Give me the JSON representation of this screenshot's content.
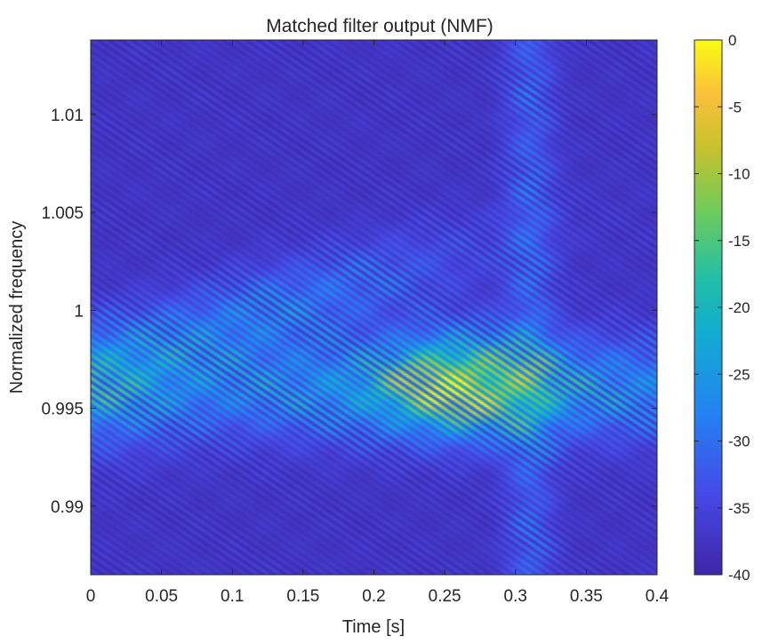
{
  "chart_data": {
    "type": "heatmap",
    "title": "Matched filter output (NMF)",
    "xlabel": "Time [s]",
    "ylabel": "Normalized frequency",
    "xlim": [
      0,
      0.4
    ],
    "ylim": [
      0.9865,
      1.0138
    ],
    "x_ticks": [
      0,
      0.05,
      0.1,
      0.15,
      0.2,
      0.25,
      0.3,
      0.35,
      0.4
    ],
    "x_tick_labels": [
      "0",
      "0.05",
      "0.1",
      "0.15",
      "0.2",
      "0.25",
      "0.3",
      "0.35",
      "0.4"
    ],
    "y_ticks": [
      0.99,
      0.995,
      1,
      1.005,
      1.01
    ],
    "y_tick_labels": [
      "0.99",
      "0.995",
      "1",
      "1.005",
      "1.01"
    ],
    "grid": false,
    "colormap": "parula",
    "colorbar": {
      "min": -40,
      "max": 0,
      "ticks": [
        0,
        -5,
        -10,
        -15,
        -20,
        -25,
        -30,
        -35,
        -40
      ],
      "tick_labels": [
        "0",
        "-5",
        "-10",
        "-15",
        "-20",
        "-25",
        "-30",
        "-35",
        "-40"
      ]
    },
    "peak": {
      "time": 0.26,
      "frequency": 0.9963,
      "value_db": 0
    },
    "ridge_frequency": 0.996,
    "floor_db": -40
  },
  "colors": {
    "background": "#ffffff",
    "axis": "#262626",
    "cmap_low": "#3e26a8",
    "cmap_high": "#f9fb15"
  }
}
